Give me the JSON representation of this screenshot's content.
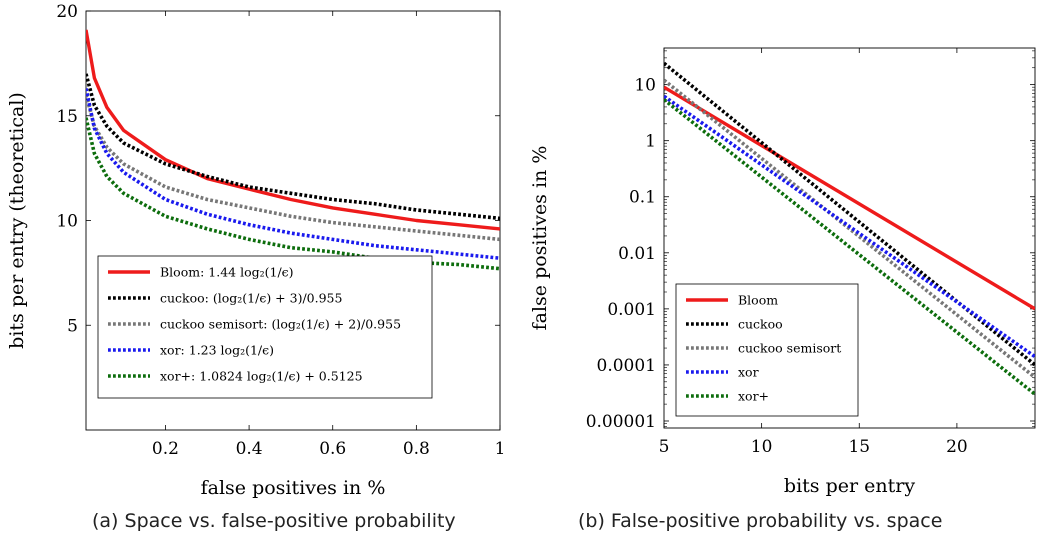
{
  "chart_data": [
    {
      "type": "line",
      "caption": "(a) Space vs. false-positive probability",
      "xlabel": "false positives in %",
      "ylabel": "bits per entry (theoretical)",
      "xlim": [
        0.01,
        1
      ],
      "ylim": [
        0,
        20
      ],
      "x_ticks": [
        0.2,
        0.4,
        0.6,
        0.8,
        1
      ],
      "x_tick_labels": [
        "0.2",
        "0.4",
        "0.6",
        "0.8",
        "1"
      ],
      "y_ticks": [
        5,
        10,
        15,
        20
      ],
      "y_tick_labels": [
        "5",
        "10",
        "15",
        "20"
      ],
      "grid": false,
      "legend_position": "bottom-left",
      "x": [
        0.01,
        0.03,
        0.06,
        0.1,
        0.2,
        0.3,
        0.4,
        0.5,
        0.6,
        0.7,
        0.8,
        0.9,
        1.0
      ],
      "series": [
        {
          "name": "Bloom: 1.44 log₂(1/ϵ)",
          "color": "#ee1b1b",
          "dash": "solid",
          "values": [
            19.1,
            16.8,
            15.4,
            14.3,
            12.9,
            12.0,
            11.5,
            11.0,
            10.6,
            10.3,
            10.0,
            9.8,
            9.6
          ]
        },
        {
          "name": "cuckoo: (log₂(1/ϵ) + 3)/0.955",
          "color": "#000000",
          "dash": "dotted",
          "values": [
            17.0,
            15.5,
            14.5,
            13.7,
            12.7,
            12.1,
            11.6,
            11.3,
            11.0,
            10.8,
            10.5,
            10.3,
            10.1
          ]
        },
        {
          "name": "cuckoo semisort: (log₂(1/ϵ) + 2)/0.955",
          "color": "#777777",
          "dash": "dotted",
          "values": [
            16.0,
            14.5,
            13.5,
            12.7,
            11.6,
            11.0,
            10.6,
            10.2,
            9.9,
            9.7,
            9.5,
            9.3,
            9.1
          ]
        },
        {
          "name": "xor: 1.23 log₂(1/ϵ)",
          "color": "#1a1aee",
          "dash": "dotted",
          "values": [
            16.3,
            14.4,
            13.2,
            12.3,
            11.0,
            10.3,
            9.8,
            9.4,
            9.1,
            8.8,
            8.6,
            8.4,
            8.2
          ]
        },
        {
          "name": "xor+: 1.0824 log₂(1/ϵ) + 0.5125",
          "color": "#0d6d0d",
          "dash": "dotted",
          "values": [
            14.9,
            13.2,
            12.1,
            11.3,
            10.2,
            9.6,
            9.1,
            8.7,
            8.5,
            8.2,
            8.0,
            7.9,
            7.7
          ]
        }
      ]
    },
    {
      "type": "line",
      "caption": "(b) False-positive probability vs. space",
      "xlabel": "bits per entry",
      "ylabel": "false positives in %",
      "xlim": [
        5,
        24
      ],
      "ylim": [
        7.5e-06,
        45
      ],
      "y_scale": "log",
      "x_ticks": [
        5,
        10,
        15,
        20
      ],
      "x_tick_labels": [
        "5",
        "10",
        "15",
        "20"
      ],
      "y_ticks": [
        1e-05,
        0.0001,
        0.001,
        0.01,
        0.1,
        1,
        10
      ],
      "y_tick_labels": [
        "0.00001",
        "0.0001",
        "0.001",
        "0.01",
        "0.1",
        "1",
        "10"
      ],
      "grid": false,
      "legend_position": "bottom-left",
      "x": [
        5,
        24
      ],
      "series": [
        {
          "name": "Bloom",
          "color": "#ee1b1b",
          "dash": "solid",
          "values": [
            9.0,
            0.001
          ]
        },
        {
          "name": "cuckoo",
          "color": "#000000",
          "dash": "dotted",
          "values": [
            24,
            0.0001
          ]
        },
        {
          "name": "cuckoo semisort",
          "color": "#777777",
          "dash": "dotted",
          "values": [
            12,
            6e-05
          ]
        },
        {
          "name": "xor",
          "color": "#1a1aee",
          "dash": "dotted",
          "values": [
            6.2,
            0.00014
          ]
        },
        {
          "name": "xor+",
          "color": "#0d6d0d",
          "dash": "dotted",
          "values": [
            5.4,
            3e-05
          ]
        }
      ]
    }
  ]
}
